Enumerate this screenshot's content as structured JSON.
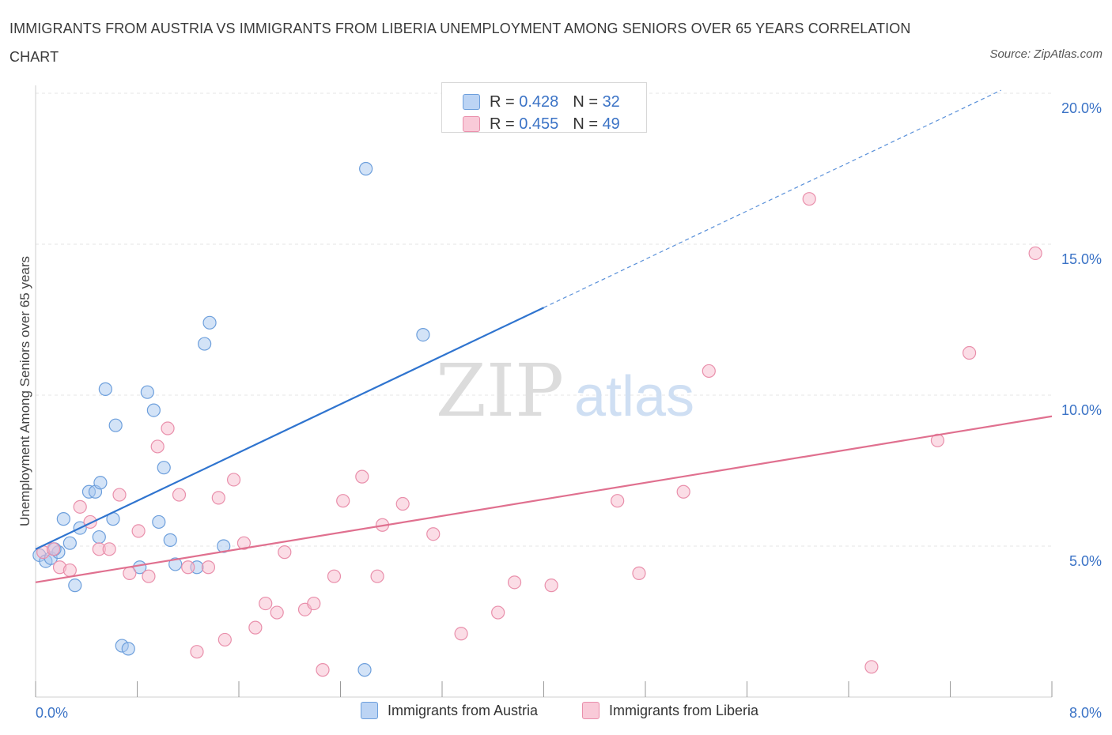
{
  "title": "IMMIGRANTS FROM AUSTRIA VS IMMIGRANTS FROM LIBERIA UNEMPLOYMENT AMONG SENIORS OVER 65 YEARS CORRELATION CHART",
  "source": "Source: ZipAtlas.com",
  "watermark": {
    "zip": "ZIP",
    "atlas": "atlas"
  },
  "legend": {
    "rows": [
      {
        "r_label": "R =",
        "r_value": "0.428",
        "n_label": "N =",
        "n_value": "32"
      },
      {
        "r_label": "R =",
        "r_value": "0.455",
        "n_label": "N =",
        "n_value": "49"
      }
    ]
  },
  "chart_data": {
    "type": "scatter",
    "title": "IMMIGRANTS FROM AUSTRIA VS IMMIGRANTS FROM LIBERIA UNEMPLOYMENT AMONG SENIORS OVER 65 YEARS CORRELATION CHART",
    "xlabel": "",
    "ylabel": "Unemployment Among Seniors over 65 years",
    "xlim": [
      0,
      8
    ],
    "ylim": [
      0,
      20
    ],
    "x_tick_labels": [
      "0.0%",
      "8.0%"
    ],
    "y_tick_values": [
      5,
      10,
      15,
      20
    ],
    "y_tick_labels": [
      "5.0%",
      "10.0%",
      "15.0%",
      "20.0%"
    ],
    "grid": true,
    "colors": {
      "austria_fill": "#a8c8f0",
      "austria_stroke": "#6d9fdc",
      "austria_line": "#2f74cf",
      "liberia_fill": "#f7bccd",
      "liberia_stroke": "#e98fab",
      "liberia_line": "#e0708f",
      "tick_label": "#3b73c6",
      "grid": "#e4e4e4"
    },
    "series": [
      {
        "name": "Immigrants from Austria",
        "r": 0.428,
        "n": 32,
        "trend": {
          "x0": 0.0,
          "y0": 4.9,
          "x1": 4.0,
          "y1": 12.9,
          "dash_to_x": 7.6,
          "dash_to_y": 20.1
        },
        "points": [
          [
            0.03,
            4.7
          ],
          [
            0.08,
            4.5
          ],
          [
            0.12,
            4.6
          ],
          [
            0.18,
            4.8
          ],
          [
            0.22,
            5.9
          ],
          [
            0.27,
            5.1
          ],
          [
            0.31,
            3.7
          ],
          [
            0.35,
            5.6
          ],
          [
            0.42,
            6.8
          ],
          [
            0.47,
            6.8
          ],
          [
            0.5,
            5.3
          ],
          [
            0.51,
            7.1
          ],
          [
            0.55,
            10.2
          ],
          [
            0.61,
            5.9
          ],
          [
            0.63,
            9.0
          ],
          [
            0.68,
            1.7
          ],
          [
            0.73,
            1.6
          ],
          [
            0.82,
            4.3
          ],
          [
            0.88,
            10.1
          ],
          [
            0.93,
            9.5
          ],
          [
            0.97,
            5.8
          ],
          [
            1.01,
            7.6
          ],
          [
            1.06,
            5.2
          ],
          [
            1.1,
            4.4
          ],
          [
            1.27,
            4.3
          ],
          [
            1.33,
            11.7
          ],
          [
            1.37,
            12.4
          ],
          [
            1.48,
            5.0
          ],
          [
            2.6,
            17.5
          ],
          [
            3.05,
            12.0
          ],
          [
            2.59,
            0.9
          ],
          [
            0.15,
            4.9
          ]
        ]
      },
      {
        "name": "Immigrants from Liberia",
        "r": 0.455,
        "n": 49,
        "trend": {
          "x0": 0.0,
          "y0": 3.8,
          "x1": 8.0,
          "y1": 9.3
        },
        "points": [
          [
            0.06,
            4.8
          ],
          [
            0.14,
            4.9
          ],
          [
            0.19,
            4.3
          ],
          [
            0.27,
            4.2
          ],
          [
            0.35,
            6.3
          ],
          [
            0.43,
            5.8
          ],
          [
            0.5,
            4.9
          ],
          [
            0.58,
            4.9
          ],
          [
            0.66,
            6.7
          ],
          [
            0.74,
            4.1
          ],
          [
            0.81,
            5.5
          ],
          [
            0.89,
            4.0
          ],
          [
            0.96,
            8.3
          ],
          [
            1.04,
            8.9
          ],
          [
            1.13,
            6.7
          ],
          [
            1.2,
            4.3
          ],
          [
            1.27,
            1.5
          ],
          [
            1.36,
            4.3
          ],
          [
            1.44,
            6.6
          ],
          [
            1.49,
            1.9
          ],
          [
            1.56,
            7.2
          ],
          [
            1.64,
            5.1
          ],
          [
            1.73,
            2.3
          ],
          [
            1.81,
            3.1
          ],
          [
            1.9,
            2.8
          ],
          [
            1.96,
            4.8
          ],
          [
            2.12,
            2.9
          ],
          [
            2.19,
            3.1
          ],
          [
            2.26,
            0.9
          ],
          [
            2.35,
            4.0
          ],
          [
            2.42,
            6.5
          ],
          [
            2.57,
            7.3
          ],
          [
            2.69,
            4.0
          ],
          [
            2.73,
            5.7
          ],
          [
            2.89,
            6.4
          ],
          [
            3.13,
            5.4
          ],
          [
            3.35,
            2.1
          ],
          [
            3.64,
            2.8
          ],
          [
            3.77,
            3.8
          ],
          [
            4.06,
            3.7
          ],
          [
            4.58,
            6.5
          ],
          [
            4.75,
            4.1
          ],
          [
            5.1,
            6.8
          ],
          [
            5.3,
            10.8
          ],
          [
            6.09,
            16.5
          ],
          [
            6.58,
            1.0
          ],
          [
            7.1,
            8.5
          ],
          [
            7.35,
            11.4
          ],
          [
            7.87,
            14.7
          ]
        ]
      }
    ]
  },
  "bottom_legend": [
    {
      "label": "Immigrants from Austria"
    },
    {
      "label": "Immigrants from Liberia"
    }
  ]
}
